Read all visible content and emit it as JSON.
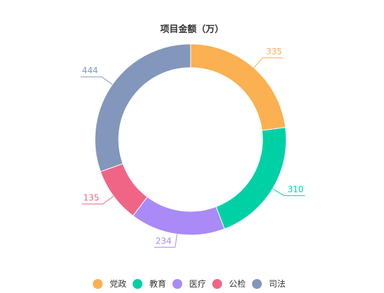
{
  "chart_data": {
    "type": "pie",
    "variant": "donut",
    "title": "项目金额（万）",
    "categories": [
      "党政",
      "教育",
      "医疗",
      "公检",
      "司法"
    ],
    "values": [
      335,
      310,
      234,
      135,
      444
    ],
    "colors": [
      "#fbb051",
      "#00d1a4",
      "#a98af7",
      "#f06585",
      "#8396bc"
    ],
    "legend_position": "bottom",
    "labels_outside": true
  }
}
